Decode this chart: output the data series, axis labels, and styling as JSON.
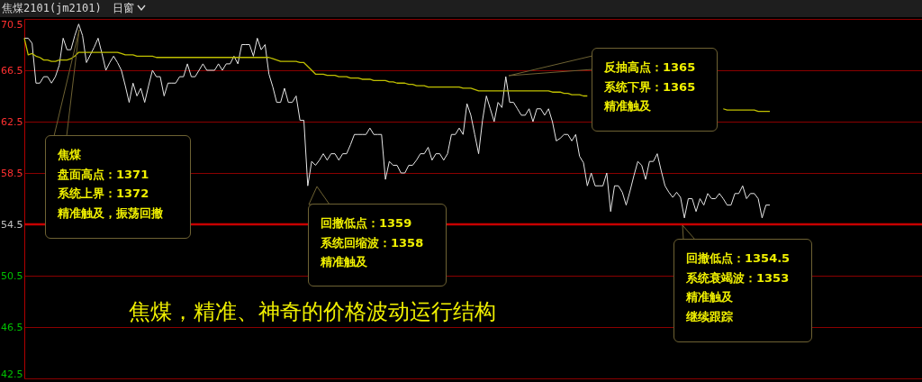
{
  "chart_data": {
    "type": "line",
    "title": "焦煤2101(jm2101)",
    "subtitle": "日窗",
    "categories": [
      null,
      null,
      null,
      null,
      null,
      null,
      null,
      null,
      null,
      null,
      null,
      null,
      null,
      null,
      null,
      null,
      null,
      null,
      null,
      null,
      null,
      null,
      null,
      null,
      null,
      null,
      null,
      null,
      null,
      null,
      null,
      null,
      null,
      null,
      null,
      null,
      null,
      null,
      null,
      null,
      null,
      null,
      null,
      null,
      null,
      null,
      null,
      null,
      null,
      null,
      null,
      null,
      null,
      null,
      null,
      null,
      null,
      null,
      null,
      null,
      null,
      null,
      null,
      null,
      null,
      null,
      null,
      null,
      null,
      null,
      null,
      null,
      null,
      null,
      null,
      null,
      null,
      null,
      null,
      null,
      null,
      null,
      null,
      null,
      null,
      null,
      null,
      null,
      null,
      null,
      null,
      null,
      null,
      null,
      null,
      null,
      null,
      null,
      null,
      null,
      null,
      null,
      null,
      null,
      null,
      null,
      null,
      null,
      null,
      null,
      null,
      null,
      null,
      null,
      null,
      null,
      null,
      null,
      null,
      null,
      null,
      null,
      null,
      null,
      null,
      null,
      null,
      null,
      null,
      null,
      null,
      null,
      null,
      null,
      null,
      null,
      null,
      null,
      null,
      null,
      null,
      null,
      null,
      null,
      null,
      null,
      null,
      null,
      null,
      null,
      null,
      null,
      null,
      null,
      null,
      null,
      null,
      null,
      null,
      null,
      null,
      null,
      null,
      null,
      null,
      null,
      null,
      null,
      null,
      null,
      null,
      null,
      null,
      null,
      null,
      null,
      null,
      null,
      null,
      null,
      null,
      null,
      null,
      null,
      null,
      null,
      null,
      null,
      null,
      null,
      null,
      null,
      null
    ],
    "series": [
      {
        "color": "#e6e6e6",
        "values": [
          69.0,
          69.0,
          68.6,
          65.5,
          65.5,
          66.0,
          66.0,
          65.5,
          66.0,
          66.9,
          69.0,
          68.1,
          68.1,
          69.2,
          70.1,
          69.2,
          67.1,
          67.7,
          68.3,
          69.0,
          67.8,
          66.5,
          67.1,
          67.6,
          67.1,
          66.5,
          65.3,
          64.0,
          65.5,
          64.5,
          65.1,
          64.0,
          65.3,
          66.5,
          66.0,
          66.0,
          64.5,
          65.5,
          65.5,
          65.5,
          66.0,
          66.0,
          67.0,
          66.0,
          66.0,
          66.5,
          67.0,
          66.5,
          66.5,
          66.5,
          67.0,
          66.5,
          67.0,
          67.0,
          67.6,
          67.0,
          68.5,
          68.5,
          68.5,
          67.6,
          69.0,
          68.1,
          68.5,
          66.2,
          65.2,
          64.0,
          64.0,
          65.1,
          64.0,
          64.0,
          64.5,
          62.6,
          62.6,
          57.5,
          59.4,
          59.1,
          59.5,
          60.0,
          59.5,
          60.0,
          60.0,
          59.5,
          60.0,
          60.0,
          60.7,
          61.5,
          61.5,
          61.5,
          61.5,
          62.0,
          61.5,
          61.5,
          61.5,
          58.0,
          59.4,
          59.1,
          59.1,
          58.5,
          58.5,
          59.1,
          59.1,
          59.5,
          60.0,
          60.0,
          60.5,
          59.5,
          60.0,
          60.0,
          59.5,
          60.0,
          61.5,
          61.5,
          62.0,
          61.5,
          63.9,
          63.0,
          61.5,
          60.0,
          62.6,
          64.5,
          63.5,
          62.5,
          64.0,
          63.6,
          66.0,
          64.0,
          64.0,
          63.5,
          63.0,
          63.0,
          63.5,
          62.5,
          63.5,
          63.5,
          63.0,
          63.5,
          62.5,
          61.0,
          61.2,
          61.5,
          61.5,
          61.0,
          61.5,
          59.8,
          59.3,
          57.5,
          58.5,
          57.5,
          57.5,
          57.5,
          58.5,
          55.5,
          57.5,
          57.5,
          57.0,
          56.0,
          57.1,
          58.3,
          59.4,
          59.1,
          58.0,
          59.4,
          59.4,
          60.0,
          58.7,
          57.5,
          57.0,
          56.6,
          57.0,
          56.6,
          55.0,
          56.5,
          56.5,
          55.5,
          56.5,
          56.0,
          56.9,
          56.5,
          56.5,
          56.9,
          56.5,
          56.0,
          56.0,
          56.9,
          56.9,
          57.5,
          56.5,
          56.9,
          56.9,
          56.5,
          55.0,
          56.0,
          56.0
        ]
      },
      {
        "color": "#c0c000",
        "values": [
          69.0,
          67.7,
          67.8,
          67.6,
          67.5,
          67.3,
          67.3,
          67.2,
          67.2,
          67.3,
          67.3,
          67.3,
          67.4,
          67.6,
          67.9,
          67.9,
          67.9,
          67.9,
          67.9,
          67.9,
          67.9,
          67.9,
          67.9,
          67.9,
          67.9,
          67.8,
          67.7,
          67.7,
          67.7,
          67.6,
          67.6,
          67.6,
          67.6,
          67.6,
          67.5,
          67.5,
          67.5,
          67.5,
          67.5,
          67.5,
          67.5,
          67.5,
          67.5,
          67.5,
          67.5,
          67.5,
          67.5,
          67.5,
          67.5,
          67.5,
          67.5,
          67.5,
          67.5,
          67.5,
          67.5,
          67.5,
          67.5,
          67.5,
          67.5,
          67.5,
          67.5,
          67.5,
          67.5,
          67.5,
          67.4,
          67.3,
          67.2,
          67.2,
          67.2,
          67.2,
          67.2,
          67.1,
          67.1,
          66.8,
          66.5,
          66.2,
          66.2,
          66.2,
          66.1,
          66.1,
          66.1,
          66.0,
          66.0,
          66.0,
          65.9,
          65.9,
          65.9,
          65.8,
          65.8,
          65.8,
          65.7,
          65.7,
          65.7,
          65.7,
          65.6,
          65.6,
          65.5,
          65.5,
          65.5,
          65.4,
          65.4,
          65.3,
          65.3,
          65.3,
          65.2,
          65.2,
          65.2,
          65.2,
          65.2,
          65.2,
          65.2,
          65.2,
          65.2,
          65.1,
          65.1,
          65.1,
          65.0,
          64.9,
          64.9,
          64.9,
          64.9,
          64.9,
          64.9,
          64.9,
          64.9,
          64.9,
          64.9,
          64.9,
          64.9,
          64.9,
          64.9,
          64.9,
          64.9,
          64.9,
          64.9,
          64.9,
          64.8,
          64.8,
          64.8,
          64.7,
          64.7,
          64.6,
          64.6,
          64.6,
          64.5,
          64.5,
          null,
          null,
          null,
          null,
          null,
          null,
          null,
          null,
          null,
          null,
          null,
          null,
          null,
          null,
          null,
          null,
          null,
          null,
          null,
          null,
          null,
          null,
          null,
          null,
          null,
          null,
          null,
          null,
          null,
          null,
          null,
          null,
          null,
          null,
          63.5,
          63.4,
          63.4,
          63.4,
          63.4,
          63.4,
          63.4,
          63.4,
          63.4,
          63.3,
          63.3,
          63.3,
          63.3
        ]
      }
    ],
    "ylim": [
      42.5,
      70.5
    ],
    "yticks": [
      42.5,
      46.5,
      50.5,
      54.5,
      58.5,
      62.5,
      66.5,
      70.5
    ],
    "grid": "y",
    "tick_labels": "y",
    "ref_lines": [
      {
        "axis": "y",
        "value": 54.5,
        "color": "#c80000"
      }
    ],
    "annotations": [
      "焦煤",
      "盘面高点：1371",
      "系统上界：1372",
      "精准触及，振荡回撤",
      "回撤低点：1359",
      "系统回缩波：1358",
      "精准触及",
      "反抽高点：1365",
      "系统下界：1365",
      "精准触及",
      "回撤低点：1354.5",
      "系统衰竭波：1353",
      "精准触及",
      "继续跟踪",
      "焦煤，精准、神奇的价格波动运行结构"
    ]
  }
}
